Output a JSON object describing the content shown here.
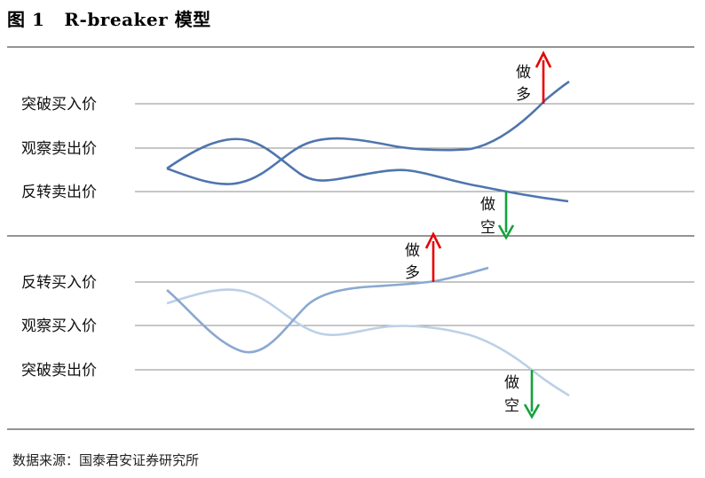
{
  "figure": {
    "number": "图 1",
    "title": "R-breaker 模型"
  },
  "top_panel": {
    "levels": [
      "突破买入价",
      "观察卖出价",
      "反转卖出价"
    ],
    "actions": {
      "long": "做多",
      "short": "做空"
    }
  },
  "bottom_panel": {
    "levels": [
      "反转买入价",
      "观察买入价",
      "突破卖出价"
    ],
    "actions": {
      "long": "做多",
      "short": "做空"
    }
  },
  "source": "数据来源：国泰君安证券研究所",
  "colors": {
    "line_dark": "#4f75ad",
    "line_mid": "#8aa8d2",
    "line_light": "#bcd0e8",
    "up_arrow": "#e60000",
    "down_arrow": "#13a23c",
    "rule": "#555555",
    "level_line": "#8c8c8c"
  }
}
